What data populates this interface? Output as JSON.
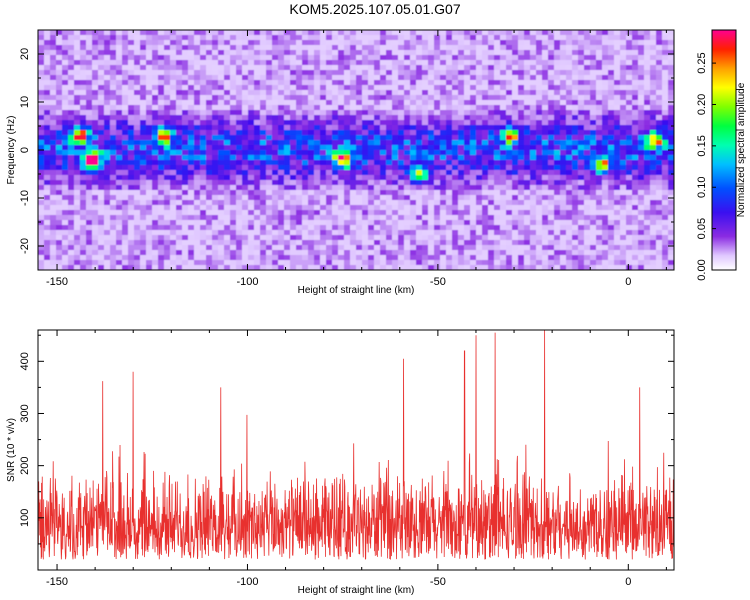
{
  "title": "KOM5.2025.107.05.01.G07",
  "chart_data": [
    {
      "type": "heatmap",
      "xlabel": "Height of straight line (km)",
      "ylabel": "Frequency (Hz)",
      "xlim": [
        -155,
        12
      ],
      "ylim": [
        -25,
        25
      ],
      "xticks": [
        "-150",
        "-100",
        "-50",
        "0"
      ],
      "xtick_values": [
        -150,
        -100,
        -50,
        0
      ],
      "yticks": [
        "-20",
        "-10",
        "0",
        "10",
        "20"
      ],
      "ytick_values": [
        -20,
        -10,
        0,
        10,
        20
      ],
      "colorbar": {
        "label": "Normalized spectral amplitude",
        "range": [
          0,
          0.29
        ],
        "ticks": [
          "0.00",
          "0.05",
          "0.10",
          "0.15",
          "0.20",
          "0.25"
        ],
        "tick_values": [
          0,
          0.05,
          0.1,
          0.15,
          0.2,
          0.25
        ],
        "colormap": [
          "#ffffff",
          "#8a2be2",
          "#0000ff",
          "#00bfff",
          "#00ff80",
          "#66ff00",
          "#ffff00",
          "#ff8c00",
          "#ff0000",
          "#ff00aa"
        ]
      },
      "band_center_hz": 0,
      "band_halfwidth_hz": 6,
      "peak_points": [
        {
          "x": -141,
          "y": -2,
          "v": 0.27
        },
        {
          "x": -144,
          "y": 3,
          "v": 0.22
        },
        {
          "x": -122,
          "y": 3,
          "v": 0.21
        },
        {
          "x": -75,
          "y": -2,
          "v": 0.22
        },
        {
          "x": -55,
          "y": -5,
          "v": 0.18
        },
        {
          "x": -31,
          "y": 3,
          "v": 0.19
        },
        {
          "x": -7,
          "y": -3,
          "v": 0.18
        },
        {
          "x": 7,
          "y": 2,
          "v": 0.2
        }
      ]
    },
    {
      "type": "line",
      "xlabel": "Height of straight line (km)",
      "ylabel": "SNR (10 * v/v)",
      "xlim": [
        -155,
        12
      ],
      "ylim": [
        0,
        460
      ],
      "xticks": [
        "-150",
        "-100",
        "-50",
        "0"
      ],
      "xtick_values": [
        -150,
        -100,
        -50,
        0
      ],
      "yticks": [
        "100",
        "200",
        "300",
        "400"
      ],
      "ytick_values": [
        100,
        200,
        300,
        400
      ],
      "series_color": "#e8302e",
      "typical_range": [
        20,
        200
      ],
      "peaks": [
        {
          "x": -138,
          "y": 362
        },
        {
          "x": -130,
          "y": 380
        },
        {
          "x": -107,
          "y": 350
        },
        {
          "x": -59,
          "y": 405
        },
        {
          "x": -43,
          "y": 420
        },
        {
          "x": -40,
          "y": 450
        },
        {
          "x": -35,
          "y": 455
        },
        {
          "x": -22,
          "y": 460
        },
        {
          "x": 3,
          "y": 350
        }
      ]
    }
  ]
}
